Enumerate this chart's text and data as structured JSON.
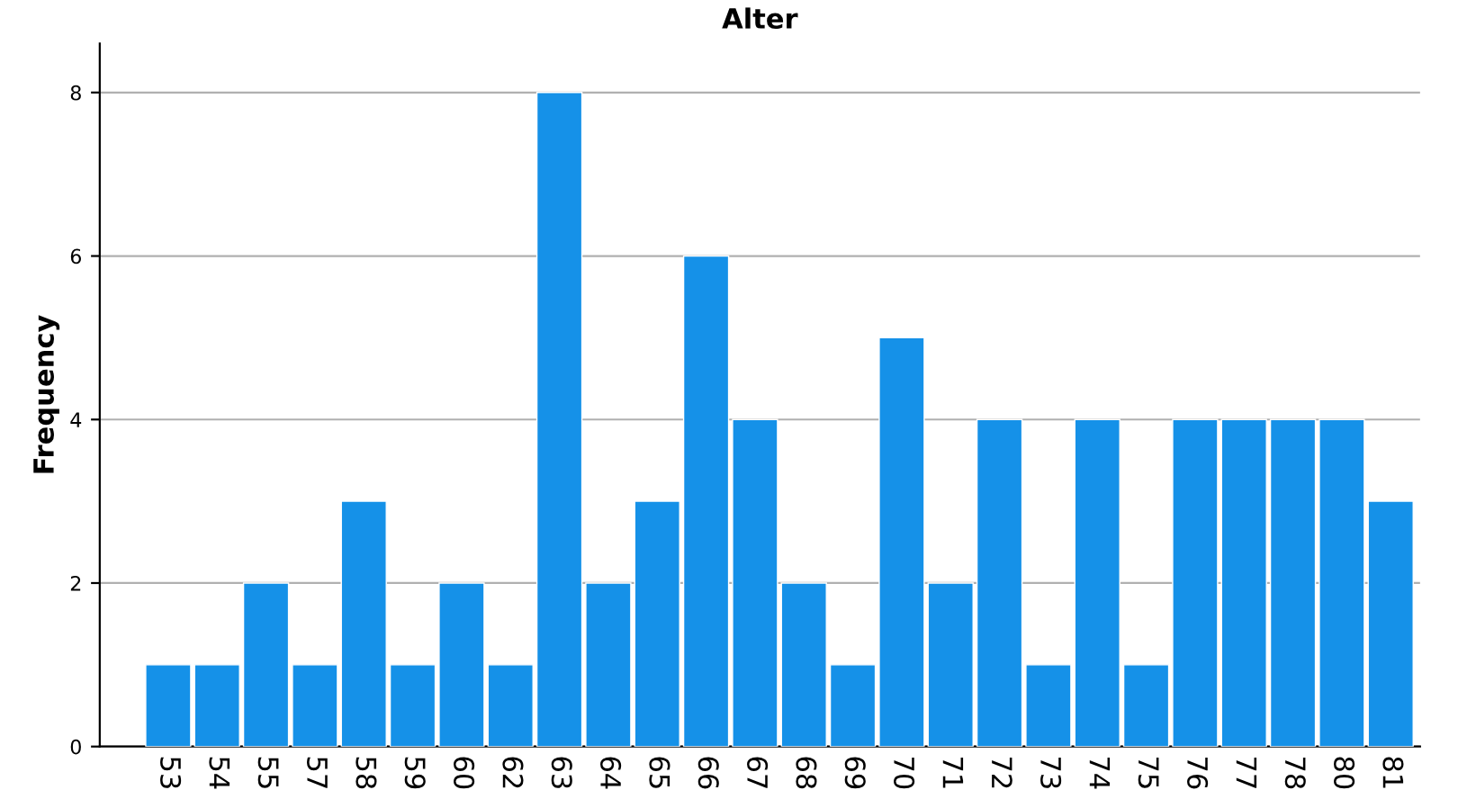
{
  "chart_data": {
    "type": "bar",
    "title": "Alter",
    "ylabel": "Frequency",
    "categories": [
      "53",
      "54",
      "55",
      "57",
      "58",
      "59",
      "60",
      "62",
      "63",
      "64",
      "65",
      "66",
      "67",
      "68",
      "69",
      "70",
      "71",
      "72",
      "73",
      "74",
      "75",
      "76",
      "77",
      "78",
      "80",
      "81"
    ],
    "values": [
      1,
      1,
      2,
      1,
      3,
      1,
      2,
      1,
      8,
      2,
      3,
      6,
      4,
      2,
      1,
      5,
      2,
      4,
      1,
      4,
      1,
      4,
      4,
      4,
      4,
      3
    ],
    "color": "#1591e8",
    "ylim": [
      0,
      8.6
    ],
    "yticks": [
      0,
      2,
      4,
      6,
      8
    ],
    "grid": "y",
    "legend": false
  }
}
